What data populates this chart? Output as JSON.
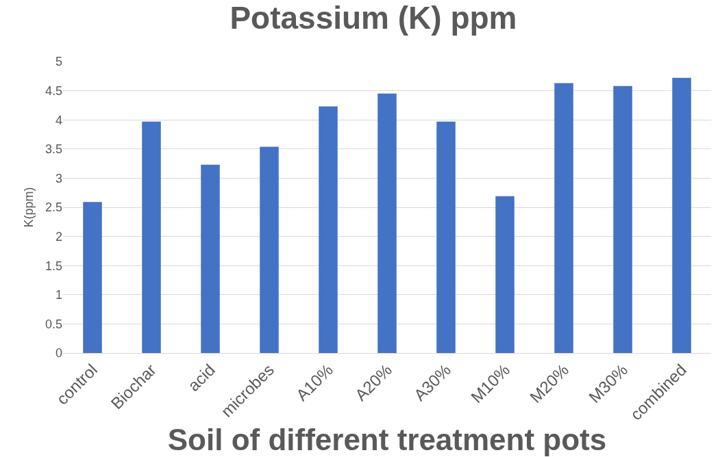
{
  "chart_data": {
    "type": "bar",
    "title": "Potassium (K) ppm",
    "xlabel": "Soil of different treatment pots",
    "ylabel": "K(ppm)",
    "categories": [
      "control",
      "Biochar",
      "acid",
      "microbes",
      "A10%",
      "A20%",
      "A30%",
      "M10%",
      "M20%",
      "M30%",
      "combined"
    ],
    "values": [
      2.59,
      3.97,
      3.23,
      3.54,
      4.23,
      4.45,
      3.97,
      2.69,
      4.63,
      4.58,
      4.72
    ],
    "color": "#4472c4",
    "ylim": [
      0,
      5
    ],
    "yticks": [
      0,
      0.5,
      1,
      1.5,
      2,
      2.5,
      3,
      3.5,
      4,
      4.5,
      5
    ],
    "grid": "y"
  }
}
